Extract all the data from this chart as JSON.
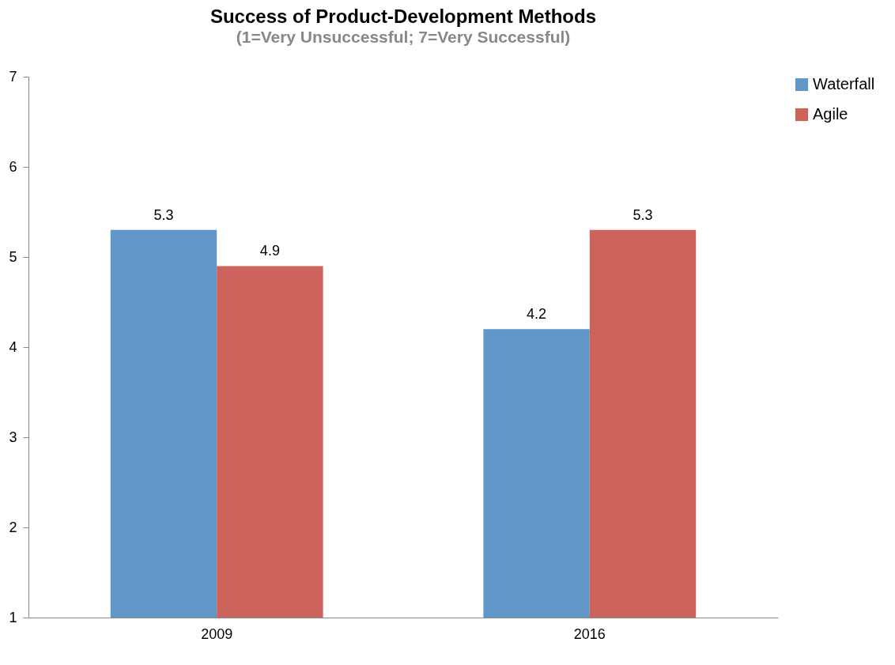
{
  "chart_data": {
    "type": "bar",
    "title": "Success of Product-Development Methods",
    "subtitle": "(1=Very Unsuccessful; 7=Very Successful)",
    "categories": [
      "2009",
      "2016"
    ],
    "series": [
      {
        "name": "Waterfall",
        "color": "#6096c8",
        "values": [
          5.3,
          4.2
        ]
      },
      {
        "name": "Agile",
        "color": "#cc645c",
        "values": [
          4.9,
          5.3
        ]
      }
    ],
    "ylim": [
      1,
      7
    ],
    "yticks": [
      1,
      2,
      3,
      4,
      5,
      6,
      7
    ],
    "data_labels": true,
    "legend": "right"
  }
}
